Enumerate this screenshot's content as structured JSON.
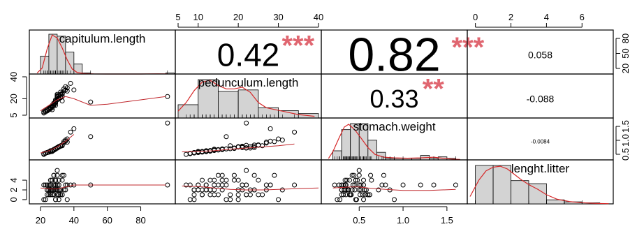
{
  "chart_data": {
    "type": "scatter-matrix",
    "variables": [
      "capitulum.length",
      "pedunculum.length",
      "stomach.weight",
      "lenght.litter"
    ],
    "ranges": [
      [
        15,
        99
      ],
      [
        5,
        40
      ],
      [
        0.1,
        1.7
      ],
      [
        -0.3,
        7.6
      ]
    ],
    "ticks": [
      [
        20,
        40,
        60,
        80
      ],
      [
        5,
        10,
        20,
        30,
        40
      ],
      [
        0.5,
        1.0,
        1.5
      ],
      [
        0,
        2,
        4,
        6
      ]
    ],
    "tick_labels": [
      [
        "20",
        "40",
        "60",
        "80"
      ],
      [
        "5",
        "10",
        "20",
        "30",
        "40"
      ],
      [
        "0.5",
        "1.0",
        "1.5"
      ],
      [
        "0",
        "2",
        "4",
        "6"
      ]
    ],
    "left_axis_ticks": {
      "1": {
        "values": [
          5,
          20,
          40
        ],
        "labels": [
          "5",
          "20",
          "40"
        ]
      },
      "3": {
        "values": [
          0,
          2,
          4
        ],
        "labels": [
          "0",
          "2",
          "4"
        ]
      }
    },
    "right_axis_ticks": {
      "0": {
        "values": [
          20,
          50,
          80
        ],
        "labels": [
          "20",
          "50",
          "80"
        ]
      },
      "2": {
        "values": [
          0.5,
          1.0,
          1.5
        ],
        "labels": [
          "0.5",
          "1.0",
          "1.5"
        ]
      }
    },
    "top_axis_ticks": {
      "1": true,
      "3": true
    },
    "bottom_axis_ticks": {
      "0": true,
      "2": true
    },
    "correlations": [
      {
        "row": 0,
        "col": 1,
        "value": "0.42",
        "stars": "***",
        "font_size": 46
      },
      {
        "row": 0,
        "col": 2,
        "value": "0.82",
        "stars": "***",
        "font_size": 68
      },
      {
        "row": 0,
        "col": 3,
        "value": "0.058",
        "stars": "",
        "font_size": 14
      },
      {
        "row": 1,
        "col": 2,
        "value": "0.33",
        "stars": "**",
        "font_size": 36
      },
      {
        "row": 1,
        "col": 3,
        "value": "-0.088",
        "stars": "",
        "font_size": 14
      },
      {
        "row": 2,
        "col": 3,
        "value": "-0.0084",
        "stars": "",
        "font_size": 8
      }
    ],
    "histograms": [
      {
        "breaks": [
          20,
          25,
          30,
          35,
          40,
          45,
          50,
          55,
          60,
          65,
          70,
          75,
          80,
          85,
          90,
          95,
          100
        ],
        "counts": [
          18,
          40,
          38,
          22,
          10,
          1,
          0,
          0,
          0,
          0,
          0,
          0,
          0,
          0,
          0,
          1
        ]
      },
      {
        "breaks": [
          5,
          10,
          15,
          20,
          25,
          30,
          35,
          40
        ],
        "counts": [
          9,
          26,
          18,
          19,
          7,
          5,
          3
        ]
      },
      {
        "breaks": [
          0.2,
          0.3,
          0.4,
          0.5,
          0.6,
          0.7,
          0.8,
          0.9,
          1.0,
          1.1,
          1.2,
          1.3,
          1.4,
          1.5,
          1.6
        ],
        "counts": [
          6,
          20,
          24,
          24,
          13,
          5,
          1,
          1,
          1,
          1,
          3,
          1,
          2,
          1
        ]
      },
      {
        "breaks": [
          0,
          1,
          2,
          3,
          4,
          5,
          6,
          7
        ],
        "counts": [
          38,
          38,
          23,
          20,
          4,
          2,
          1
        ]
      }
    ],
    "densities": [
      {
        "x": [
          18,
          21,
          24,
          27,
          30,
          33,
          36,
          39,
          42,
          46,
          52,
          60,
          70,
          80,
          90,
          96
        ],
        "y": [
          1,
          6,
          25,
          39,
          36,
          26,
          14,
          5,
          1.5,
          0.4,
          0.1,
          0,
          0,
          0,
          0.2,
          0.1
        ]
      },
      {
        "x": [
          5,
          7,
          9,
          11,
          13,
          15,
          17,
          19,
          21,
          23,
          25,
          27,
          29,
          31,
          33,
          35,
          37,
          39
        ],
        "y": [
          4,
          9,
          16,
          21,
          22,
          19,
          17,
          17,
          18,
          15,
          9,
          6,
          5,
          4,
          3,
          2,
          1.5,
          1
        ]
      },
      {
        "x": [
          0.15,
          0.2,
          0.27,
          0.33,
          0.38,
          0.45,
          0.52,
          0.6,
          0.68,
          0.78,
          0.9,
          1.05,
          1.2,
          1.35,
          1.45,
          1.55,
          1.65
        ],
        "y": [
          1,
          6,
          16,
          24,
          26,
          22,
          16,
          9,
          4,
          2,
          1.5,
          1.2,
          1.5,
          2,
          1.2,
          0.6,
          0.3
        ]
      },
      {
        "x": [
          -0.3,
          0.2,
          0.6,
          1.0,
          1.4,
          1.8,
          2.2,
          2.6,
          3.0,
          3.5,
          4.0,
          4.6,
          5.3,
          6.0,
          6.8,
          7.5
        ],
        "y": [
          8,
          26,
          36,
          40,
          41,
          38,
          32,
          26,
          21,
          16,
          10,
          5,
          2.5,
          1.2,
          0.5,
          0.2
        ]
      }
    ],
    "data": {
      "capitulum.length": [
        27,
        29,
        24,
        31,
        26,
        30,
        33,
        28,
        25,
        22,
        35,
        29,
        27,
        31,
        24,
        30,
        36,
        28,
        26,
        33,
        32,
        29,
        25,
        23,
        34,
        30,
        28,
        27,
        31,
        26,
        29,
        24,
        33,
        30,
        28,
        35,
        27,
        32,
        38,
        25,
        29,
        31,
        27,
        26,
        34,
        30,
        22,
        28,
        33,
        96,
        27,
        31,
        30,
        23,
        40,
        29,
        26,
        33,
        28,
        25,
        30,
        50,
        32,
        27,
        36,
        29,
        24,
        31,
        28,
        26
      ],
      "pedunculum.length": [
        10,
        14,
        9,
        20,
        12,
        22,
        18,
        15,
        11,
        8,
        28,
        19,
        13,
        23,
        10,
        24,
        30,
        16,
        12,
        25,
        21,
        17,
        11,
        8,
        27,
        22,
        15,
        13,
        20,
        12,
        18,
        9,
        24,
        22,
        16,
        31,
        14,
        26,
        34,
        10,
        17,
        21,
        13,
        11,
        29,
        23,
        7,
        14,
        25,
        22,
        12,
        20,
        21,
        9,
        28,
        16,
        11,
        22,
        14,
        10,
        19,
        17,
        24,
        13,
        27,
        16,
        9,
        20,
        15,
        12
      ],
      "stomach.weight": [
        0.35,
        0.45,
        0.3,
        0.55,
        0.38,
        0.5,
        0.6,
        0.42,
        0.33,
        0.25,
        0.8,
        0.48,
        0.37,
        0.57,
        0.3,
        0.52,
        0.9,
        0.44,
        0.34,
        0.62,
        0.58,
        0.46,
        0.32,
        0.27,
        0.72,
        0.5,
        0.41,
        0.36,
        0.56,
        0.35,
        0.47,
        0.3,
        0.63,
        0.51,
        0.43,
        0.85,
        0.39,
        0.6,
        1.2,
        0.33,
        0.46,
        0.55,
        0.38,
        0.35,
        0.78,
        0.5,
        0.22,
        0.4,
        0.64,
        1.6,
        0.37,
        0.54,
        0.52,
        0.28,
        1.35,
        0.45,
        0.34,
        0.62,
        0.42,
        0.32,
        0.5,
        1.0,
        0.58,
        0.39,
        0.76,
        0.46,
        0.3,
        0.55,
        0.43,
        0.35
      ],
      "lenght.litter": [
        2,
        3,
        1,
        4,
        2,
        3,
        1,
        5,
        2,
        0,
        3,
        4,
        2,
        1,
        3,
        2,
        0,
        5,
        3,
        1,
        2,
        4,
        1,
        3,
        2,
        6,
        1,
        4,
        2,
        3,
        0,
        2,
        5,
        1,
        3,
        2,
        4,
        1,
        3,
        2,
        0,
        3,
        2,
        1,
        5,
        2,
        3,
        1,
        4,
        3,
        2,
        1,
        3,
        0,
        3,
        2,
        4,
        1,
        2,
        3,
        5,
        3,
        2,
        1,
        3,
        4,
        2,
        0,
        3,
        2
      ]
    },
    "smooth_lines": {
      "1_0": {
        "x": [
          20,
          25,
          30,
          35,
          40,
          50,
          60,
          70,
          80,
          95
        ],
        "y": [
          9,
          14,
          19,
          22,
          20,
          14,
          15,
          17,
          19,
          22
        ]
      },
      "2_0": {
        "x": [
          20,
          25,
          30,
          35,
          40
        ],
        "y": [
          0.28,
          0.38,
          0.55,
          0.8,
          1.1
        ]
      },
      "3_0": {
        "x": [
          20,
          25,
          30,
          35,
          40,
          50,
          60,
          70,
          80,
          95
        ],
        "y": [
          2.4,
          2.2,
          2.2,
          2.6,
          3.0,
          3.0,
          3.0,
          3.0,
          3.0,
          3.0
        ]
      },
      "2_1": {
        "x": [
          6,
          10,
          14,
          18,
          22,
          26,
          30,
          34
        ],
        "y": [
          0.33,
          0.35,
          0.38,
          0.45,
          0.5,
          0.55,
          0.6,
          0.68
        ]
      },
      "3_1": {
        "x": [
          6,
          10,
          14,
          18,
          22,
          26,
          30,
          36,
          40
        ],
        "y": [
          2.8,
          2.7,
          2.4,
          2.1,
          2.0,
          2.0,
          2.1,
          2.3,
          2.4
        ]
      },
      "3_2": {
        "x": [
          0.2,
          0.3,
          0.4,
          0.5,
          0.6,
          0.8,
          1.0,
          1.3,
          1.6
        ],
        "y": [
          2.4,
          2.5,
          2.6,
          2.6,
          2.4,
          2.1,
          1.9,
          1.9,
          2.1
        ]
      }
    },
    "grid": false,
    "legend": "none"
  }
}
